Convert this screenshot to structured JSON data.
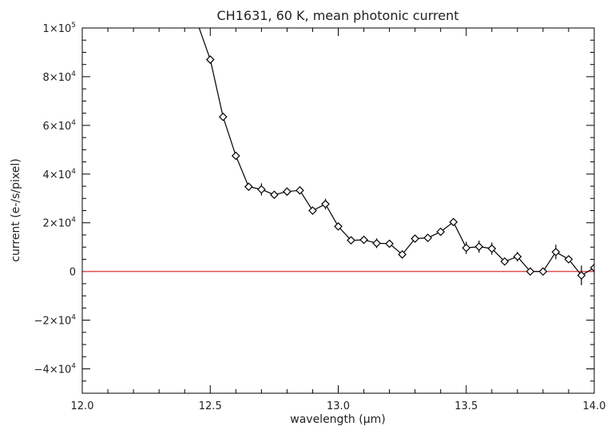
{
  "chart_data": {
    "type": "line",
    "title": "CH1631, 60 K, mean photonic current",
    "xlabel": "wavelength (μm)",
    "ylabel": "current (e-/s/pixel)",
    "xlim": [
      12.0,
      14.0
    ],
    "ylim": [
      -50000,
      100000
    ],
    "x_ticks": [
      12.0,
      12.5,
      13.0,
      13.5,
      14.0
    ],
    "x_tick_labels": [
      "12.0",
      "12.5",
      "13.0",
      "13.5",
      "14.0"
    ],
    "y_ticks": [
      {
        "value": 100000,
        "mant": "1",
        "exp": "5"
      },
      {
        "value": 80000,
        "mant": "8",
        "exp": "4"
      },
      {
        "value": 60000,
        "mant": "6",
        "exp": "4"
      },
      {
        "value": 40000,
        "mant": "4",
        "exp": "4"
      },
      {
        "value": 20000,
        "mant": "2",
        "exp": "4"
      },
      {
        "value": 0,
        "mant": "0",
        "exp": ""
      },
      {
        "value": -20000,
        "mant": "−2",
        "exp": "4"
      },
      {
        "value": -40000,
        "mant": "−4",
        "exp": "4"
      }
    ],
    "y_tick_x_glyph": "×10",
    "reference_line": {
      "y": 0,
      "color": "#e05050"
    },
    "line_color": "#000000",
    "marker": "diamond",
    "series": [
      {
        "x": [
          12.45,
          12.5,
          12.55,
          12.6,
          12.65,
          12.7,
          12.75,
          12.8,
          12.85,
          12.9,
          12.95,
          13.0,
          13.05,
          13.1,
          13.15,
          13.2,
          13.25,
          13.3,
          13.35,
          13.4,
          13.45,
          13.5,
          13.55,
          13.6,
          13.65,
          13.7,
          13.75,
          13.8,
          13.85,
          13.9,
          13.95,
          14.0
        ],
        "y": [
          102000,
          87000,
          63500,
          47500,
          34800,
          33700,
          31500,
          32800,
          33300,
          25000,
          27700,
          18500,
          12800,
          13000,
          11600,
          11400,
          7000,
          13500,
          13800,
          16300,
          20300,
          9700,
          10200,
          9400,
          4100,
          6100,
          0,
          0,
          8000,
          5000,
          -1600,
          1500
        ],
        "yerr": [
          1000,
          1200,
          1200,
          1200,
          1200,
          2500,
          1500,
          1500,
          1500,
          1500,
          2200,
          1500,
          1500,
          1500,
          2000,
          1500,
          1500,
          1500,
          1500,
          1500,
          1500,
          2500,
          2500,
          2500,
          1500,
          2000,
          1500,
          1500,
          3000,
          1500,
          4000,
          1500
        ]
      }
    ]
  }
}
